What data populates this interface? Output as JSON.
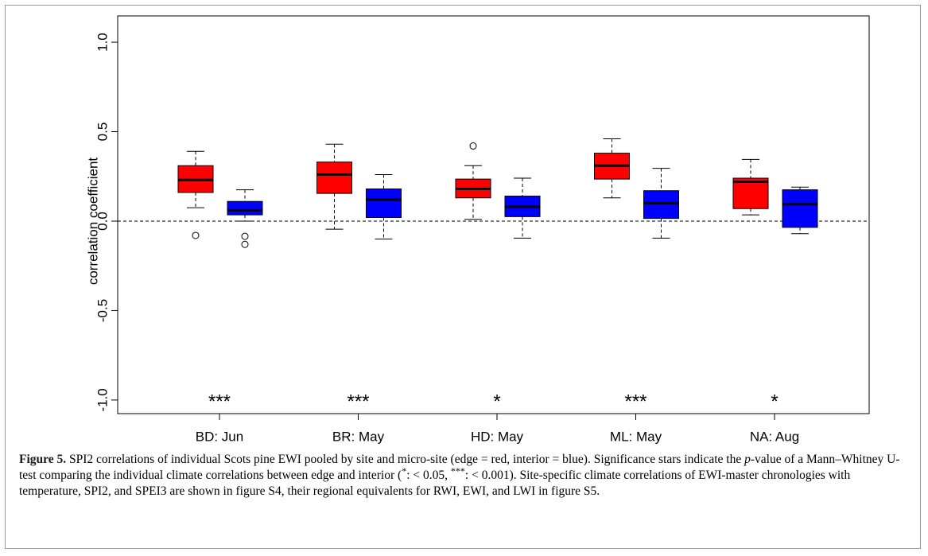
{
  "chart_data": {
    "type": "boxplot",
    "ylabel": "correlation coefficient",
    "categories": [
      "BD: Jun",
      "BR: May",
      "HD: May",
      "ML: May",
      "NA: Aug"
    ],
    "ylim": [
      -1.076,
      1.147
    ],
    "yticks": [
      {
        "value": 1,
        "label": "1.0"
      },
      0.5,
      {
        "value": 0,
        "label": "0.0"
      },
      -0.5,
      {
        "value": -1,
        "label": "-1.0"
      }
    ],
    "hline": 0,
    "significance": [
      "***",
      "***",
      "*",
      "***",
      "*"
    ],
    "series": [
      {
        "color": "#ff0000",
        "boxes": [
          {
            "whislo": 0.075,
            "q1": 0.16,
            "med": 0.23,
            "q3": 0.31,
            "whishi": 0.39,
            "fliers": [
              -0.08
            ]
          },
          {
            "whislo": -0.045,
            "q1": 0.155,
            "med": 0.26,
            "q3": 0.33,
            "whishi": 0.43,
            "fliers": []
          },
          {
            "whislo": 0.01,
            "q1": 0.13,
            "med": 0.18,
            "q3": 0.235,
            "whishi": 0.31,
            "fliers": [
              0.42
            ]
          },
          {
            "whislo": 0.13,
            "q1": 0.235,
            "med": 0.31,
            "q3": 0.38,
            "whishi": 0.46,
            "fliers": []
          },
          {
            "whislo": 0.035,
            "q1": 0.07,
            "med": 0.22,
            "q3": 0.24,
            "whishi": 0.345,
            "fliers": []
          }
        ]
      },
      {
        "color": "#0000ff",
        "boxes": [
          {
            "whislo": 0.0,
            "q1": 0.035,
            "med": 0.06,
            "q3": 0.11,
            "whishi": 0.175,
            "fliers": [
              -0.085,
              -0.13
            ]
          },
          {
            "whislo": -0.1,
            "q1": 0.02,
            "med": 0.12,
            "q3": 0.18,
            "whishi": 0.26,
            "fliers": []
          },
          {
            "whislo": -0.095,
            "q1": 0.025,
            "med": 0.08,
            "q3": 0.14,
            "whishi": 0.24,
            "fliers": []
          },
          {
            "whislo": -0.095,
            "q1": 0.015,
            "med": 0.1,
            "q3": 0.17,
            "whishi": 0.295,
            "fliers": []
          },
          {
            "whislo": -0.07,
            "q1": -0.035,
            "med": 0.095,
            "q3": 0.175,
            "whishi": 0.19,
            "fliers": []
          }
        ]
      }
    ]
  },
  "caption": [
    {
      "text": "Figure 5.",
      "style": "bold"
    },
    {
      "text": " SPI2 correlations of individual Scots pine EWI pooled by site and micro-site (edge = red, interior = blue). Significance stars indicate the "
    },
    {
      "text": "p",
      "style": "italic"
    },
    {
      "text": "-value of a Mann–Whitney U-test comparing the individual climate correlations between edge and interior ("
    },
    {
      "text": "*",
      "style": "sup"
    },
    {
      "text": ": < 0.05, "
    },
    {
      "text": "***",
      "style": "sup"
    },
    {
      "text": ": < 0.001). Site-specific climate correlations of EWI-master chronologies with temperature, SPI2, and SPEI3 are shown in figure S4, their regional equivalents for RWI, EWI, and LWI in figure S5."
    }
  ]
}
